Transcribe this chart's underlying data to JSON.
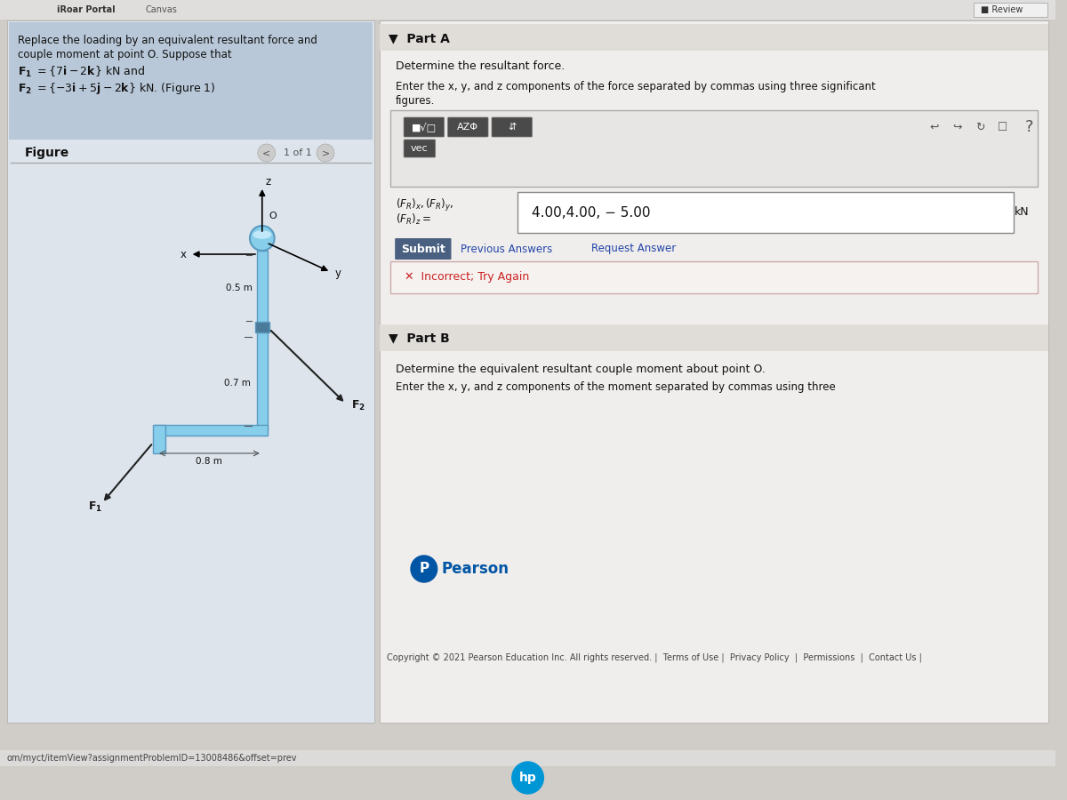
{
  "bg_color": "#d0ccc8",
  "left_panel_bg": "#dde4ec",
  "prob_box_bg": "#b8c8d8",
  "right_panel_bg": "#f0eeec",
  "toolbar_bg": "#e0dcd8",
  "review_text": "Review",
  "problem_text_line1": "Replace the loading by an equivalent resultant force and",
  "problem_text_line2": "couple moment at point O. Suppose that",
  "problem_text_F1": "F₁ = {7i − 2k} kN and",
  "problem_text_F2": "F₂ = {−3i + 5j − 2k} kN. (Figure 1)",
  "figure_label": "Figure",
  "part_a_label": "▼  Part A",
  "part_a_q1": "Determine the resultant force.",
  "part_a_q2": "Enter the x, y, and z components of the force separated by commas using three significant",
  "part_a_q2b": "figures.",
  "vec_button": "vec",
  "question_mark": "?",
  "answer_value": "4.00,4.00, − 5.00",
  "answer_unit": "kN",
  "submit_label": "Submit",
  "prev_answers": "Previous Answers",
  "request_answer": "Request Answer",
  "incorrect_text": "✕  Incorrect; Try Again",
  "part_b_label": "▼  Part B",
  "part_b_q1": "Determine the equivalent resultant couple moment about point O.",
  "part_b_q2": "Enter the x, y, and z components of the moment separated by commas using three",
  "pearson_text": "Pearson",
  "copyright_text": "Copyright © 2021 Pearson Education Inc. All rights reserved. |  Terms of Use |  Privacy Policy  |  Permissions  |  Contact Us |",
  "url_text": "om/myct/itemView?assignmentProblemID=13008486&offset=prev",
  "dim_05": "0.5 m",
  "dim_07": "0.7 m",
  "dim_08": "0.8 m",
  "pipe_color": "#87CEEB",
  "pipe_dark": "#5a9ac0"
}
